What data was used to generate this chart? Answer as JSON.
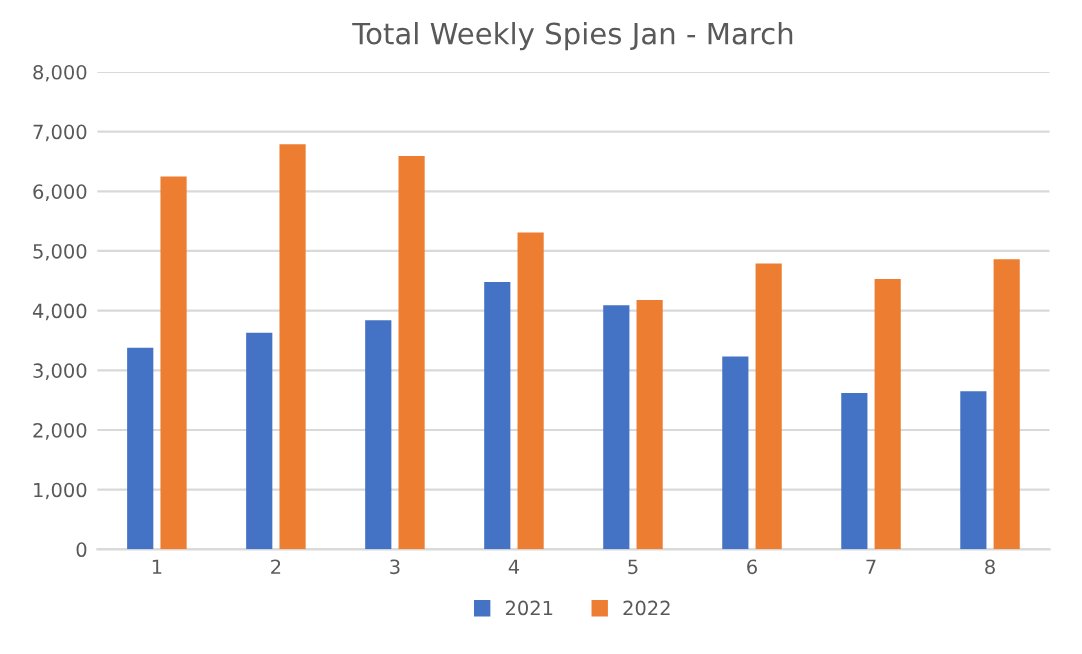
{
  "chart_data": {
    "type": "bar",
    "title": "Total Weekly Spies Jan - March",
    "categories": [
      "1",
      "2",
      "3",
      "4",
      "5",
      "6",
      "7",
      "8"
    ],
    "series": [
      {
        "name": "2021",
        "color": "#4472c4",
        "values": [
          3380,
          3630,
          3840,
          4480,
          4090,
          3230,
          2620,
          2650
        ]
      },
      {
        "name": "2022",
        "color": "#ed7d31",
        "values": [
          6250,
          6790,
          6590,
          5310,
          4180,
          4790,
          4530,
          4860
        ]
      }
    ],
    "ylim": [
      0,
      8000
    ],
    "yticks": [
      {
        "value": 0,
        "label": "0"
      },
      {
        "value": 1000,
        "label": "1,000"
      },
      {
        "value": 2000,
        "label": "2,000"
      },
      {
        "value": 3000,
        "label": "3,000"
      },
      {
        "value": 4000,
        "label": "4,000"
      },
      {
        "value": 5000,
        "label": "5,000"
      },
      {
        "value": 6000,
        "label": "6,000"
      },
      {
        "value": 7000,
        "label": "7,000"
      },
      {
        "value": 8000,
        "label": "8,000"
      }
    ],
    "grid": "y",
    "legend": "bottom"
  }
}
